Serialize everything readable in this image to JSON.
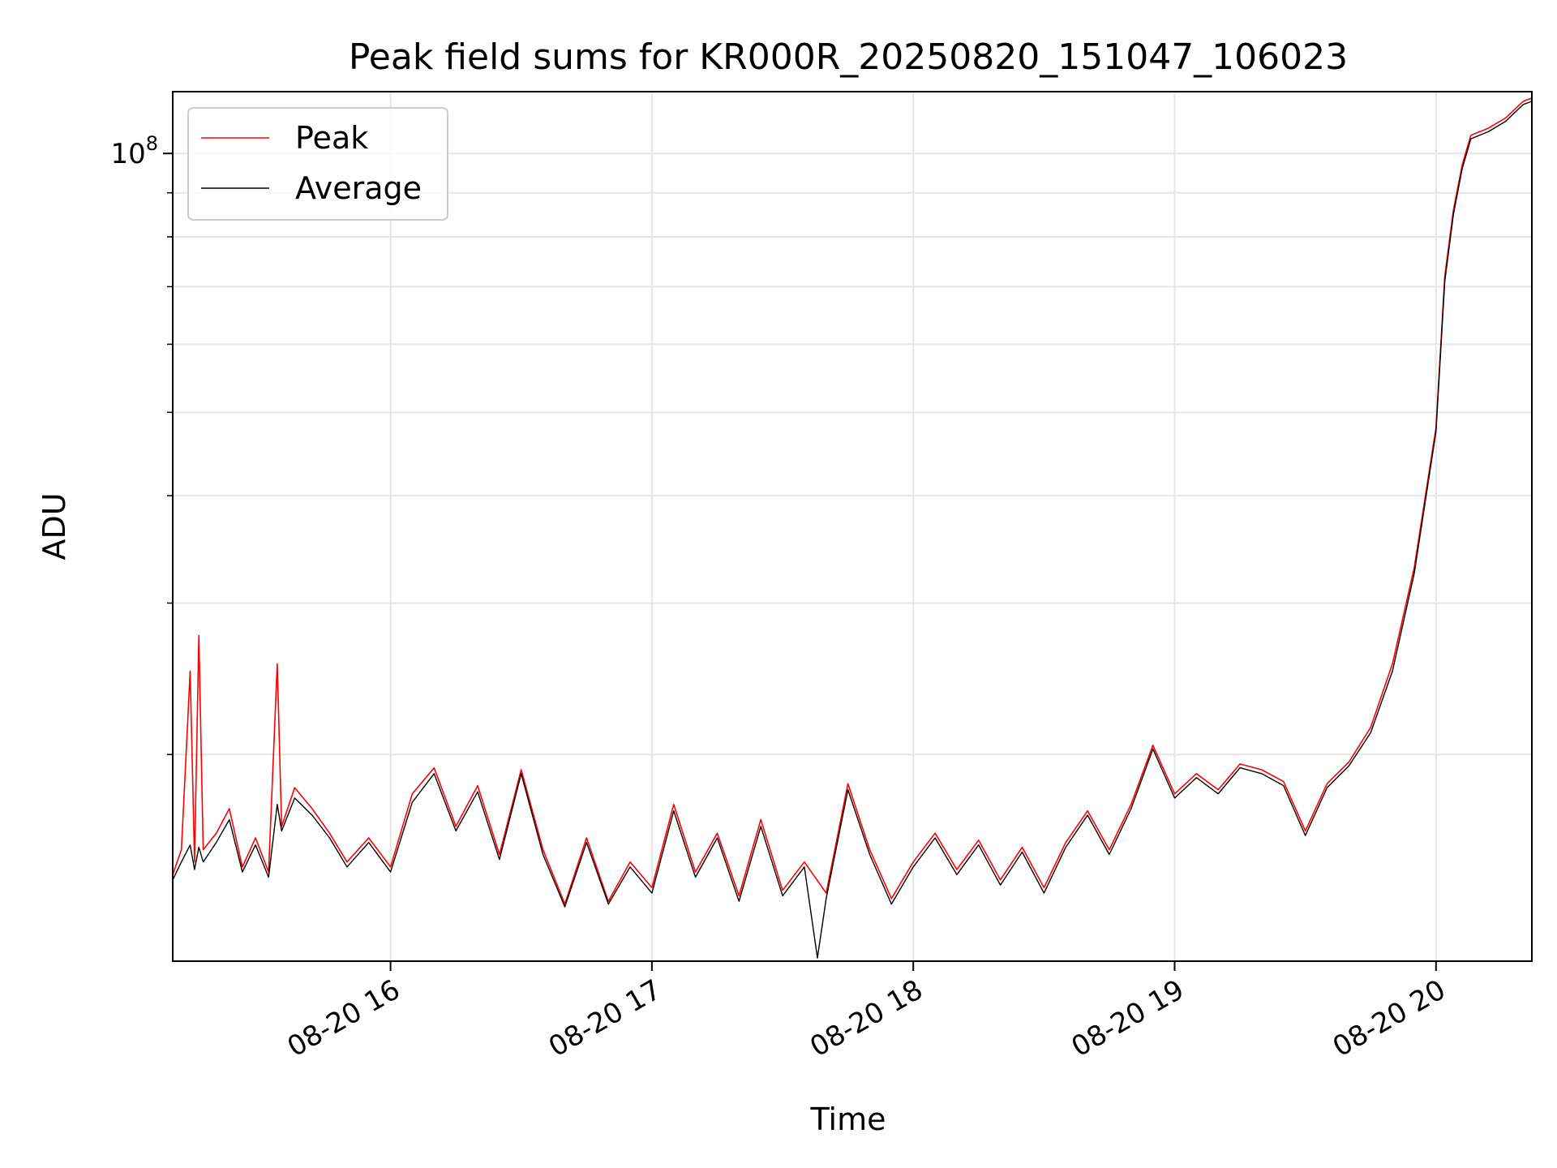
{
  "chart_data": {
    "type": "line",
    "title": "Peak field sums for KR000R_20250820_151047_106023",
    "xlabel": "Time",
    "ylabel": "ADU",
    "y_scale": "log",
    "y_tick_label_base": "10",
    "y_tick_label_exp": "8",
    "y_major_tick": 100000000,
    "y_minor_ticks": [
      20000000,
      30000000,
      40000000,
      50000000,
      60000000,
      70000000,
      80000000,
      90000000
    ],
    "ylim": [
      11500000,
      118000000
    ],
    "xlim": [
      "2025-08-20 15:10",
      "2025-08-20 20:22"
    ],
    "x_ticks": [
      {
        "time": "2025-08-20 16:00",
        "label": "08-20 16"
      },
      {
        "time": "2025-08-20 17:00",
        "label": "08-20 17"
      },
      {
        "time": "2025-08-20 18:00",
        "label": "08-20 18"
      },
      {
        "time": "2025-08-20 19:00",
        "label": "08-20 19"
      },
      {
        "time": "2025-08-20 20:00",
        "label": "08-20 20"
      }
    ],
    "grid": true,
    "legend_position": "upper-left",
    "series": [
      {
        "name": "Peak",
        "color": "#ff0000",
        "points": [
          [
            "2025-08-20 15:10",
            14500000
          ],
          [
            "2025-08-20 15:12",
            15500000
          ],
          [
            "2025-08-20 15:14",
            25000000
          ],
          [
            "2025-08-20 15:15",
            15000000
          ],
          [
            "2025-08-20 15:16",
            27500000
          ],
          [
            "2025-08-20 15:17",
            15500000
          ],
          [
            "2025-08-20 15:20",
            16200000
          ],
          [
            "2025-08-20 15:23",
            17300000
          ],
          [
            "2025-08-20 15:26",
            14800000
          ],
          [
            "2025-08-20 15:29",
            16000000
          ],
          [
            "2025-08-20 15:32",
            14600000
          ],
          [
            "2025-08-20 15:34",
            25500000
          ],
          [
            "2025-08-20 15:35",
            16500000
          ],
          [
            "2025-08-20 15:38",
            18300000
          ],
          [
            "2025-08-20 15:42",
            17300000
          ],
          [
            "2025-08-20 15:46",
            16200000
          ],
          [
            "2025-08-20 15:50",
            15000000
          ],
          [
            "2025-08-20 15:55",
            16000000
          ],
          [
            "2025-08-20 16:00",
            14800000
          ],
          [
            "2025-08-20 16:05",
            18000000
          ],
          [
            "2025-08-20 16:10",
            19300000
          ],
          [
            "2025-08-20 16:15",
            16500000
          ],
          [
            "2025-08-20 16:20",
            18400000
          ],
          [
            "2025-08-20 16:25",
            15300000
          ],
          [
            "2025-08-20 16:30",
            19200000
          ],
          [
            "2025-08-20 16:35",
            15500000
          ],
          [
            "2025-08-20 16:40",
            13400000
          ],
          [
            "2025-08-20 16:45",
            16000000
          ],
          [
            "2025-08-20 16:50",
            13500000
          ],
          [
            "2025-08-20 16:55",
            15000000
          ],
          [
            "2025-08-20 17:00",
            14000000
          ],
          [
            "2025-08-20 17:05",
            17500000
          ],
          [
            "2025-08-20 17:10",
            14600000
          ],
          [
            "2025-08-20 17:15",
            16200000
          ],
          [
            "2025-08-20 17:20",
            13700000
          ],
          [
            "2025-08-20 17:25",
            16800000
          ],
          [
            "2025-08-20 17:30",
            13900000
          ],
          [
            "2025-08-20 17:35",
            15000000
          ],
          [
            "2025-08-20 17:40",
            13800000
          ],
          [
            "2025-08-20 17:45",
            18500000
          ],
          [
            "2025-08-20 17:50",
            15500000
          ],
          [
            "2025-08-20 17:55",
            13600000
          ],
          [
            "2025-08-20 18:00",
            15000000
          ],
          [
            "2025-08-20 18:05",
            16200000
          ],
          [
            "2025-08-20 18:10",
            14700000
          ],
          [
            "2025-08-20 18:15",
            15900000
          ],
          [
            "2025-08-20 18:20",
            14300000
          ],
          [
            "2025-08-20 18:25",
            15600000
          ],
          [
            "2025-08-20 18:30",
            14000000
          ],
          [
            "2025-08-20 18:35",
            15800000
          ],
          [
            "2025-08-20 18:40",
            17200000
          ],
          [
            "2025-08-20 18:45",
            15500000
          ],
          [
            "2025-08-20 18:50",
            17500000
          ],
          [
            "2025-08-20 18:55",
            20500000
          ],
          [
            "2025-08-20 19:00",
            18000000
          ],
          [
            "2025-08-20 19:05",
            19000000
          ],
          [
            "2025-08-20 19:10",
            18200000
          ],
          [
            "2025-08-20 19:15",
            19500000
          ],
          [
            "2025-08-20 19:20",
            19200000
          ],
          [
            "2025-08-20 19:25",
            18600000
          ],
          [
            "2025-08-20 19:30",
            16300000
          ],
          [
            "2025-08-20 19:35",
            18500000
          ],
          [
            "2025-08-20 19:40",
            19600000
          ],
          [
            "2025-08-20 19:45",
            21500000
          ],
          [
            "2025-08-20 19:50",
            25500000
          ],
          [
            "2025-08-20 19:55",
            33000000
          ],
          [
            "2025-08-20 20:00",
            48000000
          ],
          [
            "2025-08-20 20:02",
            72000000
          ],
          [
            "2025-08-20 20:04",
            86000000
          ],
          [
            "2025-08-20 20:06",
            97000000
          ],
          [
            "2025-08-20 20:08",
            105000000
          ],
          [
            "2025-08-20 20:12",
            107000000
          ],
          [
            "2025-08-20 20:16",
            110000000
          ],
          [
            "2025-08-20 20:20",
            115000000
          ],
          [
            "2025-08-20 20:22",
            116000000
          ]
        ]
      },
      {
        "name": "Average",
        "color": "#000000",
        "points": [
          [
            "2025-08-20 15:10",
            14300000
          ],
          [
            "2025-08-20 15:12",
            15000000
          ],
          [
            "2025-08-20 15:14",
            15700000
          ],
          [
            "2025-08-20 15:15",
            14700000
          ],
          [
            "2025-08-20 15:16",
            15600000
          ],
          [
            "2025-08-20 15:17",
            15000000
          ],
          [
            "2025-08-20 15:20",
            15800000
          ],
          [
            "2025-08-20 15:23",
            16800000
          ],
          [
            "2025-08-20 15:26",
            14600000
          ],
          [
            "2025-08-20 15:29",
            15700000
          ],
          [
            "2025-08-20 15:32",
            14400000
          ],
          [
            "2025-08-20 15:34",
            17500000
          ],
          [
            "2025-08-20 15:35",
            16300000
          ],
          [
            "2025-08-20 15:38",
            17800000
          ],
          [
            "2025-08-20 15:42",
            17000000
          ],
          [
            "2025-08-20 15:46",
            16000000
          ],
          [
            "2025-08-20 15:50",
            14800000
          ],
          [
            "2025-08-20 15:55",
            15800000
          ],
          [
            "2025-08-20 16:00",
            14600000
          ],
          [
            "2025-08-20 16:05",
            17600000
          ],
          [
            "2025-08-20 16:10",
            19000000
          ],
          [
            "2025-08-20 16:15",
            16300000
          ],
          [
            "2025-08-20 16:20",
            18100000
          ],
          [
            "2025-08-20 16:25",
            15100000
          ],
          [
            "2025-08-20 16:30",
            19000000
          ],
          [
            "2025-08-20 16:35",
            15300000
          ],
          [
            "2025-08-20 16:40",
            13300000
          ],
          [
            "2025-08-20 16:45",
            15800000
          ],
          [
            "2025-08-20 16:50",
            13400000
          ],
          [
            "2025-08-20 16:55",
            14800000
          ],
          [
            "2025-08-20 17:00",
            13800000
          ],
          [
            "2025-08-20 17:05",
            17200000
          ],
          [
            "2025-08-20 17:10",
            14400000
          ],
          [
            "2025-08-20 17:15",
            16000000
          ],
          [
            "2025-08-20 17:20",
            13500000
          ],
          [
            "2025-08-20 17:25",
            16500000
          ],
          [
            "2025-08-20 17:30",
            13700000
          ],
          [
            "2025-08-20 17:35",
            14800000
          ],
          [
            "2025-08-20 17:38",
            11600000
          ],
          [
            "2025-08-20 17:40",
            13600000
          ],
          [
            "2025-08-20 17:45",
            18200000
          ],
          [
            "2025-08-20 17:50",
            15300000
          ],
          [
            "2025-08-20 17:55",
            13400000
          ],
          [
            "2025-08-20 18:00",
            14800000
          ],
          [
            "2025-08-20 18:05",
            16000000
          ],
          [
            "2025-08-20 18:10",
            14500000
          ],
          [
            "2025-08-20 18:15",
            15700000
          ],
          [
            "2025-08-20 18:20",
            14100000
          ],
          [
            "2025-08-20 18:25",
            15400000
          ],
          [
            "2025-08-20 18:30",
            13800000
          ],
          [
            "2025-08-20 18:35",
            15600000
          ],
          [
            "2025-08-20 18:40",
            17000000
          ],
          [
            "2025-08-20 18:45",
            15300000
          ],
          [
            "2025-08-20 18:50",
            17300000
          ],
          [
            "2025-08-20 18:55",
            20300000
          ],
          [
            "2025-08-20 19:00",
            17800000
          ],
          [
            "2025-08-20 19:05",
            18800000
          ],
          [
            "2025-08-20 19:10",
            18000000
          ],
          [
            "2025-08-20 19:15",
            19300000
          ],
          [
            "2025-08-20 19:20",
            19000000
          ],
          [
            "2025-08-20 19:25",
            18400000
          ],
          [
            "2025-08-20 19:30",
            16100000
          ],
          [
            "2025-08-20 19:35",
            18300000
          ],
          [
            "2025-08-20 19:40",
            19400000
          ],
          [
            "2025-08-20 19:45",
            21200000
          ],
          [
            "2025-08-20 19:50",
            25000000
          ],
          [
            "2025-08-20 19:55",
            32500000
          ],
          [
            "2025-08-20 20:00",
            47500000
          ],
          [
            "2025-08-20 20:02",
            71000000
          ],
          [
            "2025-08-20 20:04",
            85000000
          ],
          [
            "2025-08-20 20:06",
            96000000
          ],
          [
            "2025-08-20 20:08",
            104000000
          ],
          [
            "2025-08-20 20:12",
            106000000
          ],
          [
            "2025-08-20 20:16",
            109000000
          ],
          [
            "2025-08-20 20:20",
            114000000
          ],
          [
            "2025-08-20 20:22",
            115000000
          ]
        ]
      }
    ]
  }
}
